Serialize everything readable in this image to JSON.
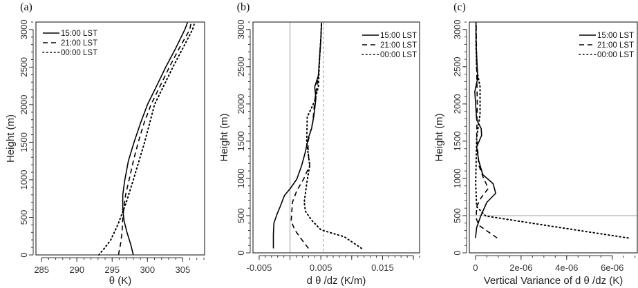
{
  "chart_data": [
    {
      "panel_label": "(a)",
      "type": "line",
      "xlabel": "θ (K)",
      "ylabel": "Height (m)",
      "xlim": [
        284.2,
        308.1
      ],
      "ylim": [
        0,
        3100
      ],
      "xticks": [
        285,
        290,
        295,
        300,
        305
      ],
      "xtick_labels": [
        "285",
        "290",
        "295",
        "300",
        "305"
      ],
      "xminor_step": 1,
      "yticks": [
        0,
        500,
        1000,
        1500,
        2000,
        2500,
        3000
      ],
      "ytick_labels": [
        "0",
        "500",
        "1000",
        "1500",
        "2000",
        "2500",
        "3000"
      ],
      "yminor_step": 100,
      "legend_position": "top-left",
      "reference_lines": [],
      "series": [
        {
          "name": "15:00 LST",
          "style": "solid",
          "x": [
            298.0,
            297.6,
            297.1,
            296.7,
            296.5,
            296.5,
            296.8,
            297.3,
            298.1,
            299.0,
            300.0,
            301.3,
            302.6,
            304.0,
            305.3,
            305.7
          ],
          "y": [
            0,
            150,
            300,
            450,
            600,
            800,
            1000,
            1250,
            1500,
            1750,
            2000,
            2250,
            2500,
            2750,
            3000,
            3100
          ]
        },
        {
          "name": "21:00 LST",
          "style": "dashed",
          "x": [
            295.9,
            296.2,
            296.4,
            296.5,
            296.9,
            297.4,
            298.0,
            298.7,
            299.5,
            300.5,
            301.8,
            303.1,
            304.5,
            306.0,
            306.2
          ],
          "y": [
            0,
            150,
            300,
            500,
            800,
            1000,
            1250,
            1500,
            1750,
            2000,
            2250,
            2500,
            2750,
            3000,
            3100
          ]
        },
        {
          "name": "00:00 LST",
          "style": "dotted",
          "x": [
            293.1,
            294.0,
            294.8,
            295.8,
            296.4,
            297.0,
            298.0,
            298.8,
            299.6,
            300.3,
            301.0,
            302.3,
            303.6,
            305.0,
            306.4,
            306.7
          ],
          "y": [
            0,
            100,
            200,
            400,
            550,
            700,
            1000,
            1250,
            1500,
            1750,
            2000,
            2250,
            2500,
            2750,
            3000,
            3100
          ]
        }
      ]
    },
    {
      "panel_label": "(b)",
      "type": "line",
      "xlabel": "d θ /dz (K/m)",
      "ylabel": "Height (m)",
      "xlim": [
        -0.006,
        0.021
      ],
      "ylim": [
        0,
        3100
      ],
      "xticks": [
        -0.005,
        0.0,
        0.005,
        0.01,
        0.015,
        0.02
      ],
      "xtick_labels": [
        "-0.005",
        "",
        "0.005",
        "",
        "0.015",
        ""
      ],
      "xminor_step": 0.001,
      "yticks": [
        0,
        500,
        1000,
        1500,
        2000,
        2500,
        3000
      ],
      "ytick_labels": [
        "0",
        "500",
        "1000",
        "1500",
        "2000",
        "2500",
        "3000"
      ],
      "yminor_step": 100,
      "legend_position": "top-right",
      "reference_lines": [
        {
          "orientation": "vertical",
          "value": 0.0,
          "style": "solid",
          "color": "#b0b0b0"
        },
        {
          "orientation": "vertical",
          "value": 0.0054,
          "style": "dashed",
          "color": "#b0b0b0"
        }
      ],
      "series": [
        {
          "name": "15:00 LST",
          "style": "solid",
          "x": [
            -0.0027,
            -0.0027,
            -0.0026,
            -0.0021,
            -0.0016,
            -0.0009,
            0.0001,
            0.0011,
            0.0019,
            0.0025,
            0.003,
            0.0035,
            0.0039,
            0.0042,
            0.004,
            0.0046,
            0.0048,
            0.005,
            0.0051
          ],
          "y": [
            60,
            250,
            400,
            520,
            620,
            770,
            870,
            990,
            1175,
            1360,
            1550,
            1670,
            1860,
            2070,
            2230,
            2380,
            2630,
            2880,
            3090
          ]
        },
        {
          "name": "21:00 LST",
          "style": "dashed",
          "x": [
            0.003,
            0.0018,
            0.00075,
            0.0002,
            0.0003,
            0.0004,
            0.0011,
            0.0022,
            0.0032,
            0.003,
            0.0029,
            0.0037,
            0.004,
            0.0046,
            0.0048,
            0.005,
            0.0051
          ],
          "y": [
            60,
            190,
            310,
            430,
            560,
            680,
            835,
            990,
            1175,
            1300,
            1485,
            1760,
            2040,
            2380,
            2630,
            2880,
            3090
          ]
        },
        {
          "name": "00:00 LST",
          "style": "dotted",
          "x": [
            0.0116,
            0.0088,
            0.005,
            0.0036,
            0.0025,
            0.0023,
            0.0027,
            0.0032,
            0.0027,
            0.0028,
            0.004,
            0.0046,
            0.0048,
            0.005,
            0.0051
          ],
          "y": [
            60,
            216,
            310,
            430,
            557,
            680,
            930,
            1175,
            1485,
            1825,
            2040,
            2230,
            2630,
            2880,
            3090
          ]
        }
      ]
    },
    {
      "panel_label": "(c)",
      "type": "line",
      "xlabel": "Vertical Variance of  d θ /dz (K)",
      "ylabel": "Height (m)",
      "xlim": [
        -2.7e-07,
        7.1e-06
      ],
      "ylim": [
        0,
        3100
      ],
      "xticks": [
        0,
        2e-06,
        4e-06,
        6e-06
      ],
      "xtick_labels": [
        "0",
        "2e-06",
        "4e-06",
        "6e-06"
      ],
      "xminor_step": 5e-07,
      "yticks": [
        0,
        500,
        1000,
        1500,
        2000,
        2500,
        3000
      ],
      "ytick_labels": [
        "0",
        "500",
        "1000",
        "1500",
        "2000",
        "2500",
        "3000"
      ],
      "yminor_step": 100,
      "legend_position": "top-right",
      "reference_lines": [
        {
          "orientation": "horizontal",
          "value": 500,
          "style": "solid",
          "color": "#b0b0b0"
        }
      ],
      "series": [
        {
          "name": "15:00 LST",
          "style": "solid",
          "x": [
            0,
            5e-08,
            2.3e-07,
            5e-07,
            8.9e-07,
            7.7e-07,
            3.2e-07,
            1.4e-07,
            5e-08,
            2.7e-07,
            2.5e-07,
            5e-08,
            -3e-08,
            1e-07,
            3e-08,
            2e-08
          ],
          "y": [
            200,
            340,
            495,
            680,
            800,
            930,
            1050,
            1240,
            1420,
            1580,
            1670,
            1790,
            2165,
            2350,
            2780,
            3090
          ]
        },
        {
          "name": "21:00 LST",
          "style": "dashed",
          "x": [
            9.5e-07,
            1.5e-07,
            3e-08,
            5e-08,
            2.5e-07,
            5.6e-07,
            3.3e-07,
            1.5e-07,
            5e-08,
            8e-08,
            5e-08,
            3e-08
          ],
          "y": [
            200,
            370,
            465,
            620,
            740,
            865,
            1020,
            1175,
            1550,
            2000,
            2500,
            3090
          ]
        },
        {
          "name": "00:00 LST",
          "style": "dotted",
          "x": [
            6.7e-06,
            3.5e-06,
            4.5e-07,
            5e-08,
            1e-08,
            3e-08,
            5e-08,
            2e-07,
            2e-07,
            5e-08,
            2e-08,
            2e-08
          ],
          "y": [
            200,
            350,
            495,
            620,
            930,
            1240,
            1550,
            1860,
            2230,
            2470,
            2800,
            3090
          ]
        }
      ]
    }
  ]
}
